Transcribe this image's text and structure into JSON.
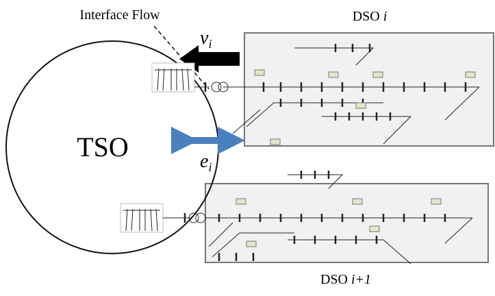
{
  "interface_flow": "Interface Flow",
  "tso": "TSO",
  "dso_top": {
    "name": "DSO",
    "index": "i"
  },
  "dso_bottom": {
    "name": "DSO",
    "index": "i+1"
  },
  "v": {
    "symbol": "v",
    "sub": "i"
  },
  "e": {
    "symbol": "e",
    "sub": "i"
  }
}
